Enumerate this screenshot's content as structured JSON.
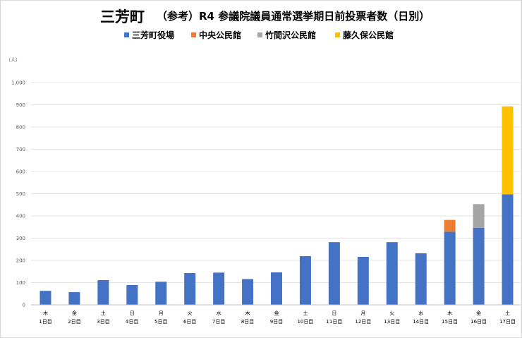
{
  "title": {
    "main": "三芳町",
    "sub": "（参考）R4 参議院議員通常選挙期日前投票者数（日別）"
  },
  "unit_label": "（人）",
  "chart_data": {
    "type": "bar",
    "stacked": true,
    "ylim": [
      0,
      1000
    ],
    "yticks": [
      0,
      100,
      200,
      300,
      400,
      500,
      600,
      700,
      800,
      900,
      1000
    ],
    "ytick_labels": [
      "0",
      "100",
      "200",
      "300",
      "400",
      "500",
      "600",
      "700",
      "800",
      "900",
      "1,000"
    ],
    "grid": true,
    "legend_position": "top",
    "categories": [
      {
        "weekday": "木",
        "day": "1日目"
      },
      {
        "weekday": "金",
        "day": "2日目"
      },
      {
        "weekday": "土",
        "day": "3日目"
      },
      {
        "weekday": "日",
        "day": "4日目"
      },
      {
        "weekday": "月",
        "day": "5日目"
      },
      {
        "weekday": "火",
        "day": "6日目"
      },
      {
        "weekday": "水",
        "day": "7日目"
      },
      {
        "weekday": "木",
        "day": "8日目"
      },
      {
        "weekday": "金",
        "day": "9日目"
      },
      {
        "weekday": "土",
        "day": "10日目"
      },
      {
        "weekday": "日",
        "day": "11日目"
      },
      {
        "weekday": "月",
        "day": "12日目"
      },
      {
        "weekday": "火",
        "day": "13日目"
      },
      {
        "weekday": "水",
        "day": "14日目"
      },
      {
        "weekday": "木",
        "day": "15日目"
      },
      {
        "weekday": "金",
        "day": "16日目"
      },
      {
        "weekday": "土",
        "day": "17日目"
      }
    ],
    "series": [
      {
        "name": "三芳町役場",
        "color": "#4472C4",
        "values": [
          63,
          57,
          111,
          89,
          104,
          143,
          145,
          116,
          146,
          219,
          282,
          216,
          282,
          232,
          329,
          347,
          497
        ]
      },
      {
        "name": "中央公民館",
        "color": "#ED7D31",
        "values": [
          0,
          0,
          0,
          0,
          0,
          0,
          0,
          0,
          0,
          0,
          0,
          0,
          0,
          0,
          53,
          0,
          0
        ]
      },
      {
        "name": "竹間沢公民館",
        "color": "#A5A5A5",
        "values": [
          0,
          0,
          0,
          0,
          0,
          0,
          0,
          0,
          0,
          0,
          0,
          0,
          0,
          0,
          0,
          106,
          0
        ]
      },
      {
        "name": "藤久保公民館",
        "color": "#FFC000",
        "values": [
          0,
          0,
          0,
          0,
          0,
          0,
          0,
          0,
          0,
          0,
          0,
          0,
          0,
          0,
          0,
          0,
          396
        ]
      }
    ]
  }
}
